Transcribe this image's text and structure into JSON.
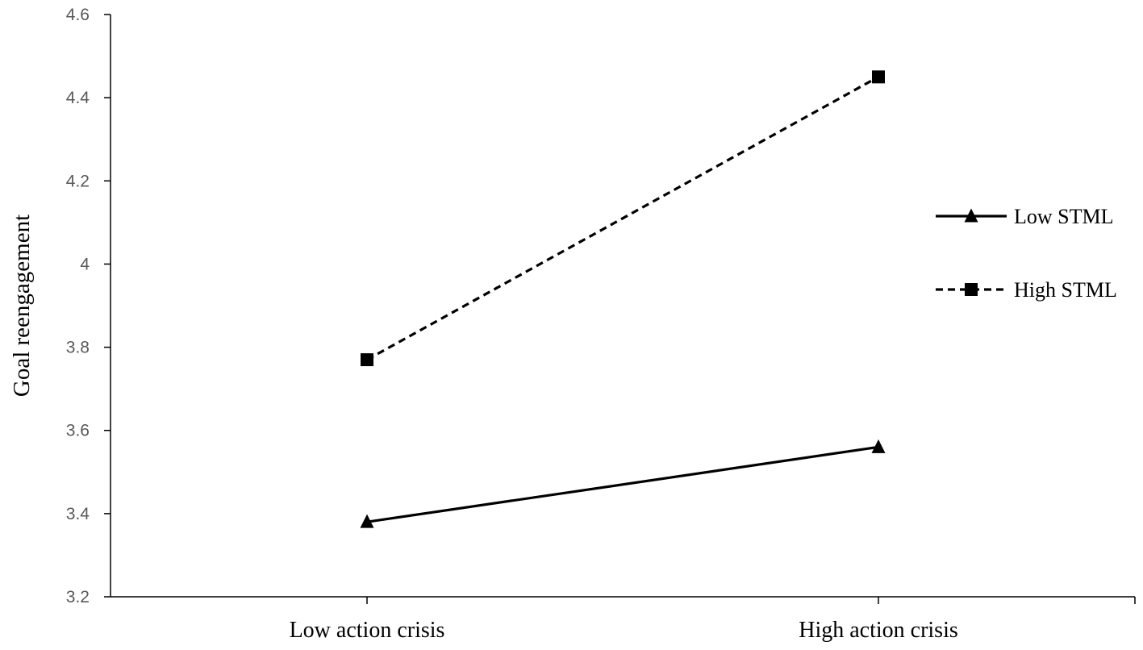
{
  "chart_data": {
    "type": "line",
    "title": "",
    "xlabel": "",
    "ylabel": "Goal reengagement",
    "categories": [
      "Low action crisis",
      "High action crisis"
    ],
    "ylim": [
      3.2,
      4.6
    ],
    "yticks": [
      "3.2",
      "3.4",
      "3.6",
      "3.8",
      "4",
      "4.2",
      "4.4",
      "4.6"
    ],
    "grid": false,
    "legend_position": "right",
    "series": [
      {
        "name": "Low STML",
        "values": [
          3.38,
          3.56
        ],
        "marker": "triangle",
        "line_style": "solid",
        "color": "#000000"
      },
      {
        "name": "High STML",
        "values": [
          3.77,
          4.45
        ],
        "marker": "square",
        "line_style": "dashed",
        "color": "#000000"
      }
    ]
  }
}
